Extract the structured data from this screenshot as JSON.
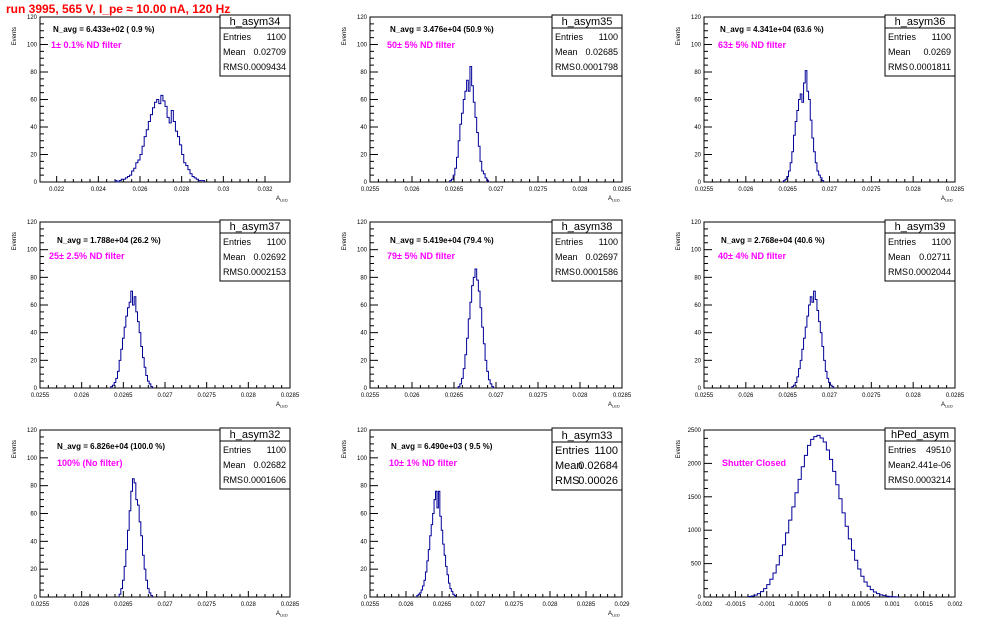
{
  "page_title": "run 3995,   565 V, I_pe ≈ 10.00 nA, 120 Hz",
  "colors": {
    "title": "#ff0000",
    "filter_label": "#ff00ff",
    "histogram": "#000099",
    "axis": "#000000",
    "stats_border": "#000000"
  },
  "chart_data": [
    {
      "type": "histogram",
      "name": "h_asym34",
      "navg_text": "N_avg = 6.433e+02 ( 0.9 %)",
      "filter_text": "1± 0.1% ND filter",
      "stats": {
        "entries_label": "Entries",
        "entries": "1100",
        "mean_label": "Mean",
        "mean": "0.02709",
        "rms_label": "RMS",
        "rms": "0.0009434"
      },
      "ylabel": "Events",
      "xlabel": "A_LED",
      "xlim": [
        0.0212,
        0.0332
      ],
      "ylim": [
        0,
        120
      ],
      "xticks": [
        0.022,
        0.024,
        0.026,
        0.028,
        0.03,
        0.032
      ],
      "xtick_labels": [
        "0.022",
        "0.024",
        "0.026",
        "0.028",
        "0.03",
        "0.032"
      ],
      "yticks": [
        0,
        20,
        40,
        60,
        80,
        100,
        120
      ],
      "ytick_labels": [
        "0",
        "20",
        "40",
        "60",
        "80",
        "100",
        "120"
      ],
      "bins": {
        "start": 0.0248,
        "width": 0.0001,
        "counts": [
          1,
          0,
          1,
          2,
          2,
          3,
          4,
          5,
          8,
          10,
          14,
          16,
          20,
          26,
          33,
          38,
          44,
          49,
          54,
          58,
          60,
          57,
          63,
          59,
          55,
          47,
          43,
          52,
          44,
          37,
          33,
          27,
          20,
          14,
          12,
          9,
          6,
          4,
          3,
          2,
          1,
          1,
          1
        ]
      }
    },
    {
      "type": "histogram",
      "name": "h_asym35",
      "navg_text": "N_avg = 3.476e+04 (50.9 %)",
      "filter_text": "50± 5% ND filter",
      "stats": {
        "entries_label": "Entries",
        "entries": "1100",
        "mean_label": "Mean",
        "mean": "0.02685",
        "rms_label": "RMS",
        "rms": "0.0001798"
      },
      "ylabel": "Events",
      "xlabel": "A_LED",
      "xlim": [
        0.0255,
        0.0285
      ],
      "ylim": [
        0,
        120
      ],
      "xticks": [
        0.0255,
        0.026,
        0.0265,
        0.027,
        0.0275,
        0.028,
        0.0285
      ],
      "xtick_labels": [
        "0.0255",
        "0.026",
        "0.0265",
        "0.027",
        "0.0275",
        "0.028",
        "0.0285"
      ],
      "yticks": [
        0,
        20,
        40,
        60,
        80,
        100,
        120
      ],
      "ytick_labels": [
        "0",
        "20",
        "40",
        "60",
        "80",
        "100",
        "120"
      ],
      "bins": {
        "start": 0.02645,
        "width": 2e-05,
        "counts": [
          1,
          2,
          5,
          10,
          18,
          30,
          42,
          50,
          60,
          66,
          74,
          66,
          84,
          70,
          58,
          47,
          36,
          26,
          15,
          8,
          6,
          3,
          1
        ]
      }
    },
    {
      "type": "histogram",
      "name": "h_asym36",
      "navg_text": "N_avg = 4.341e+04 (63.6 %)",
      "filter_text": "63± 5% ND filter",
      "stats": {
        "entries_label": "Entries",
        "entries": "1100",
        "mean_label": "Mean",
        "mean": "0.0269",
        "rms_label": "RMS",
        "rms": "0.0001811"
      },
      "ylabel": "Events",
      "xlabel": "A_LED",
      "xlim": [
        0.0255,
        0.0285
      ],
      "ylim": [
        0,
        120
      ],
      "xticks": [
        0.0255,
        0.026,
        0.0265,
        0.027,
        0.0275,
        0.028,
        0.0285
      ],
      "xtick_labels": [
        "0.0255",
        "0.026",
        "0.0265",
        "0.027",
        "0.0275",
        "0.028",
        "0.0285"
      ],
      "yticks": [
        0,
        20,
        40,
        60,
        80,
        100,
        120
      ],
      "ytick_labels": [
        "0",
        "20",
        "40",
        "60",
        "80",
        "100",
        "120"
      ],
      "bins": {
        "start": 0.02645,
        "width": 2e-05,
        "counts": [
          1,
          2,
          4,
          8,
          14,
          22,
          34,
          44,
          52,
          60,
          64,
          58,
          72,
          81,
          66,
          60,
          45,
          32,
          22,
          14,
          8,
          5,
          3,
          1
        ]
      }
    },
    {
      "type": "histogram",
      "name": "h_asym37",
      "navg_text": "N_avg = 1.788e+04 (26.2 %)",
      "filter_text": "25± 2.5% ND filter",
      "stats": {
        "entries_label": "Entries",
        "entries": "1100",
        "mean_label": "Mean",
        "mean": "0.02692",
        "rms_label": "RMS",
        "rms": "0.0002153"
      },
      "ylabel": "Events",
      "xlabel": "A_LED",
      "xlim": [
        0.0255,
        0.0285
      ],
      "ylim": [
        0,
        120
      ],
      "xticks": [
        0.0255,
        0.026,
        0.0265,
        0.027,
        0.0275,
        0.028,
        0.0285
      ],
      "xtick_labels": [
        "0.0255",
        "0.026",
        "0.0265",
        "0.027",
        "0.0275",
        "0.028",
        "0.0285"
      ],
      "yticks": [
        0,
        20,
        40,
        60,
        80,
        100,
        120
      ],
      "ytick_labels": [
        "0",
        "20",
        "40",
        "60",
        "80",
        "100",
        "120"
      ],
      "bins": {
        "start": 0.02635,
        "width": 2e-05,
        "counts": [
          1,
          2,
          4,
          7,
          12,
          20,
          28,
          36,
          44,
          52,
          58,
          62,
          70,
          60,
          66,
          55,
          48,
          40,
          30,
          22,
          15,
          9,
          5,
          3,
          1
        ]
      }
    },
    {
      "type": "histogram",
      "name": "h_asym38",
      "navg_text": "N_avg = 5.419e+04 (79.4 %)",
      "filter_text": "79± 5% ND filter",
      "stats": {
        "entries_label": "Entries",
        "entries": "1100",
        "mean_label": "Mean",
        "mean": "0.02697",
        "rms_label": "RMS",
        "rms": "0.0001586"
      },
      "ylabel": "Events",
      "xlabel": "A_LED",
      "xlim": [
        0.0255,
        0.0285
      ],
      "ylim": [
        0,
        120
      ],
      "xticks": [
        0.0255,
        0.026,
        0.0265,
        0.027,
        0.0275,
        0.028,
        0.0285
      ],
      "xtick_labels": [
        "0.0255",
        "0.026",
        "0.0265",
        "0.027",
        "0.0275",
        "0.028",
        "0.0285"
      ],
      "yticks": [
        0,
        20,
        40,
        60,
        80,
        100,
        120
      ],
      "ytick_labels": [
        "0",
        "20",
        "40",
        "60",
        "80",
        "100",
        "120"
      ],
      "bins": {
        "start": 0.02655,
        "width": 2e-05,
        "counts": [
          1,
          3,
          7,
          14,
          24,
          36,
          50,
          62,
          74,
          80,
          86,
          78,
          70,
          58,
          44,
          32,
          20,
          12,
          6,
          3,
          1
        ]
      }
    },
    {
      "type": "histogram",
      "name": "h_asym39",
      "navg_text": "N_avg = 2.768e+04 (40.6 %)",
      "filter_text": "40± 4% ND filter",
      "stats": {
        "entries_label": "Entries",
        "entries": "1100",
        "mean_label": "Mean",
        "mean": "0.02711",
        "rms_label": "RMS",
        "rms": "0.0002044"
      },
      "ylabel": "Events",
      "xlabel": "A_LED",
      "xlim": [
        0.0255,
        0.0285
      ],
      "ylim": [
        0,
        120
      ],
      "xticks": [
        0.0255,
        0.026,
        0.0265,
        0.027,
        0.0275,
        0.028,
        0.0285
      ],
      "xtick_labels": [
        "0.0255",
        "0.026",
        "0.0265",
        "0.027",
        "0.0275",
        "0.028",
        "0.0285"
      ],
      "yticks": [
        0,
        20,
        40,
        60,
        80,
        100,
        120
      ],
      "ytick_labels": [
        "0",
        "20",
        "40",
        "60",
        "80",
        "100",
        "120"
      ],
      "bins": {
        "start": 0.02655,
        "width": 2e-05,
        "counts": [
          1,
          2,
          4,
          8,
          14,
          20,
          28,
          36,
          44,
          52,
          60,
          66,
          62,
          70,
          64,
          56,
          48,
          40,
          30,
          20,
          12,
          7,
          4,
          2,
          1
        ]
      }
    },
    {
      "type": "histogram",
      "name": "h_asym32",
      "navg_text": "N_avg = 6.826e+04 (100.0 %)",
      "filter_text": "100% (No filter)",
      "stats": {
        "entries_label": "Entries",
        "entries": "1100",
        "mean_label": "Mean",
        "mean": "0.02682",
        "rms_label": "RMS",
        "rms": "0.0001606"
      },
      "ylabel": "Events",
      "xlabel": "A_LED",
      "xlim": [
        0.0255,
        0.0285
      ],
      "ylim": [
        0,
        120
      ],
      "xticks": [
        0.0255,
        0.026,
        0.0265,
        0.027,
        0.0275,
        0.028,
        0.0285
      ],
      "xtick_labels": [
        "0.0255",
        "0.026",
        "0.0265",
        "0.027",
        "0.0275",
        "0.028",
        "0.0285"
      ],
      "yticks": [
        0,
        20,
        40,
        60,
        80,
        100,
        120
      ],
      "ytick_labels": [
        "0",
        "20",
        "40",
        "60",
        "80",
        "100",
        "120"
      ],
      "bins": {
        "start": 0.02645,
        "width": 2e-05,
        "counts": [
          2,
          6,
          12,
          22,
          34,
          48,
          62,
          76,
          85,
          82,
          70,
          66,
          54,
          44,
          30,
          20,
          12,
          6,
          3,
          1
        ]
      }
    },
    {
      "type": "histogram",
      "name": "h_asym33",
      "navg_text": "N_avg = 6.490e+03 ( 9.5 %)",
      "filter_text": "10± 1% ND filter",
      "stats": {
        "entries_label": "Entries",
        "entries": "1100",
        "mean_label": "Mean",
        "mean": "0.02684",
        "rms_label": "RMS",
        "rms": "0.00026"
      },
      "ylabel": "Events",
      "xlabel": "A_LED",
      "xlim": [
        0.0255,
        0.029
      ],
      "ylim": [
        0,
        120
      ],
      "xticks": [
        0.0255,
        0.026,
        0.0265,
        0.027,
        0.0275,
        0.028,
        0.0285,
        0.029
      ],
      "xtick_labels": [
        "0.0255",
        "0.026",
        "0.0265",
        "0.027",
        "0.0275",
        "0.028",
        "0.0285",
        "0.029"
      ],
      "yticks": [
        0,
        20,
        40,
        60,
        80,
        100,
        120
      ],
      "ytick_labels": [
        "0",
        "20",
        "40",
        "60",
        "80",
        "100",
        "120"
      ],
      "bins": {
        "start": 0.02615,
        "width": 2e-05,
        "counts": [
          1,
          2,
          3,
          5,
          8,
          12,
          18,
          26,
          34,
          44,
          52,
          60,
          70,
          76,
          64,
          76,
          58,
          48,
          38,
          30,
          22,
          16,
          10,
          6,
          4,
          2,
          1
        ]
      }
    },
    {
      "type": "histogram",
      "name": "hPed_asym",
      "navg_text": "",
      "filter_text": "Shutter Closed",
      "stats": {
        "entries_label": "Entries",
        "entries": "49510",
        "mean_label": "Mean",
        "mean": "-2.441e-06",
        "rms_label": "RMS",
        "rms": "0.0003214"
      },
      "ylabel": "Events",
      "xlabel": "",
      "xlim": [
        -0.002,
        0.002
      ],
      "ylim": [
        0,
        2500
      ],
      "xticks": [
        -0.002,
        -0.0015,
        -0.001,
        -0.0005,
        0,
        0.0005,
        0.001,
        0.0015,
        0.002
      ],
      "xtick_labels": [
        "-0.002",
        "-0.0015",
        "-0.001",
        "-0.0005",
        "0",
        "0.0005",
        "0.001",
        "0.0015",
        "0.002"
      ],
      "yticks": [
        0,
        500,
        1000,
        1500,
        2000,
        2500
      ],
      "ytick_labels": [
        "0",
        "500",
        "1000",
        "1500",
        "2000",
        "2500"
      ],
      "bins": {
        "start": -0.0013,
        "width": 5e-05,
        "counts": [
          8,
          15,
          28,
          50,
          80,
          125,
          185,
          265,
          360,
          480,
          620,
          780,
          960,
          1150,
          1350,
          1560,
          1760,
          1950,
          2120,
          2270,
          2360,
          2400,
          2420,
          2380,
          2320,
          2200,
          2060,
          1880,
          1680,
          1470,
          1260,
          1060,
          870,
          700,
          550,
          420,
          310,
          225,
          160,
          110,
          75,
          50,
          32,
          20,
          12,
          6,
          3,
          1
        ]
      }
    }
  ]
}
